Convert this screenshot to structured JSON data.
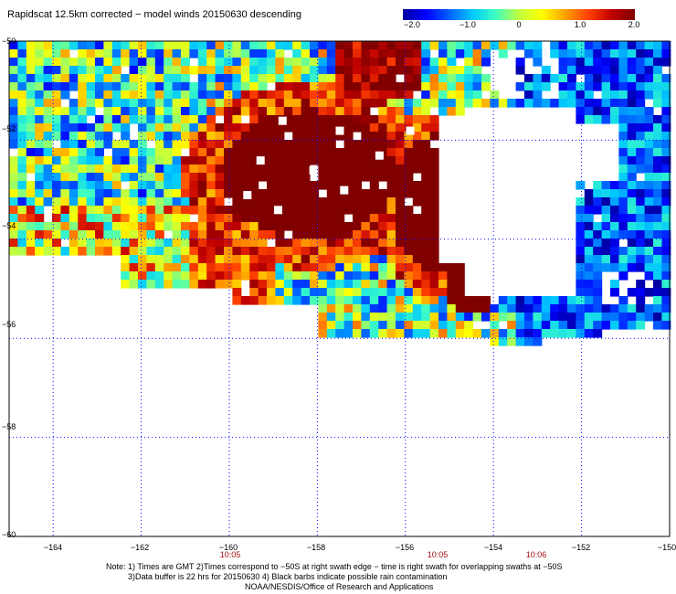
{
  "title": "Rapidscat 12.5km corrected − model winds 20150630 descending",
  "colorbar": {
    "colors": [
      "#0000a0",
      "#0000ff",
      "#0060ff",
      "#00c8ff",
      "#40ffc0",
      "#c0ff40",
      "#ffff00",
      "#ffa000",
      "#ff4000",
      "#c00000",
      "#800000"
    ],
    "labels": [
      "−2.0",
      "−1.0",
      "0",
      "1.0",
      "2.0"
    ],
    "range": [
      -2.0,
      2.0
    ]
  },
  "map": {
    "lon_range": [
      -165.0,
      -150.0
    ],
    "lat_range": [
      -60.0,
      -50.0
    ],
    "lon_ticks": [
      "−164",
      "−162",
      "−160",
      "−158",
      "−156",
      "−154",
      "−152",
      "−150"
    ],
    "lat_ticks": [
      "−50",
      "−52",
      "−54",
      "−56",
      "−58",
      "−60"
    ],
    "swath_times": [
      {
        "label": "10:05",
        "lon": -160.0
      },
      {
        "label": "10:05",
        "lon": -155.2
      },
      {
        "label": "10:06",
        "lon": -153.1
      }
    ],
    "gridline_color": "#0000ff"
  },
  "footer": {
    "line1": "Note: 1) Times are GMT 2)Times correspond to −50S at right swath edge − time is right swath for overlapping swaths at −50S",
    "line2": "3)Data buffer is 22 hrs for 20150630 4) Black barbs indicate possible rain contamination",
    "line3": "NOAA/NESDIS/Office of Research and Applications"
  }
}
